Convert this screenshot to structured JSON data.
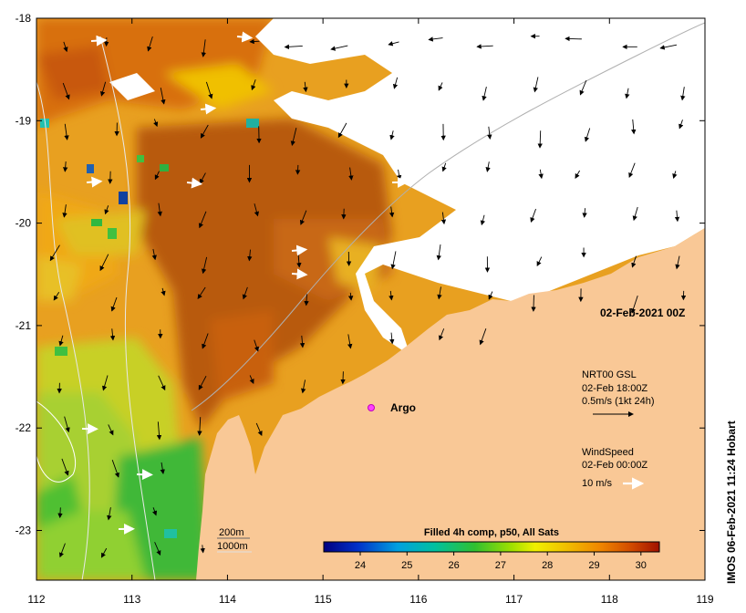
{
  "map": {
    "lon_ticks": [
      "112",
      "113",
      "114",
      "115",
      "116",
      "117",
      "118",
      "119"
    ],
    "lat_ticks": [
      "-18",
      "-19",
      "-20",
      "-21",
      "-22",
      "-23"
    ],
    "date_label": "02-Feb-2021 00Z",
    "argo_label": "Argo",
    "currents_legend": {
      "line1": "NRT00 GSL",
      "line2": "02-Feb 18:00Z",
      "line3": "0.5m/s (1kt 24h)"
    },
    "wind_legend": {
      "line1": "WindSpeed",
      "line2": "02-Feb 00:00Z",
      "line3": "10 m/s"
    },
    "depth_legend": {
      "d1": "200m",
      "d2": "1000m"
    },
    "colorbar": {
      "title": "Filled 4h comp, p50, All Sats",
      "ticks": [
        "24",
        "25",
        "26",
        "27",
        "28",
        "29",
        "30"
      ]
    },
    "credit": "IMOS 06-Feb-2021 11:24 Hobart",
    "colors": {
      "land": "#f9c896",
      "cloud": "#ffffff",
      "warm": "#b85a10",
      "cool": "#2ab83a"
    }
  }
}
